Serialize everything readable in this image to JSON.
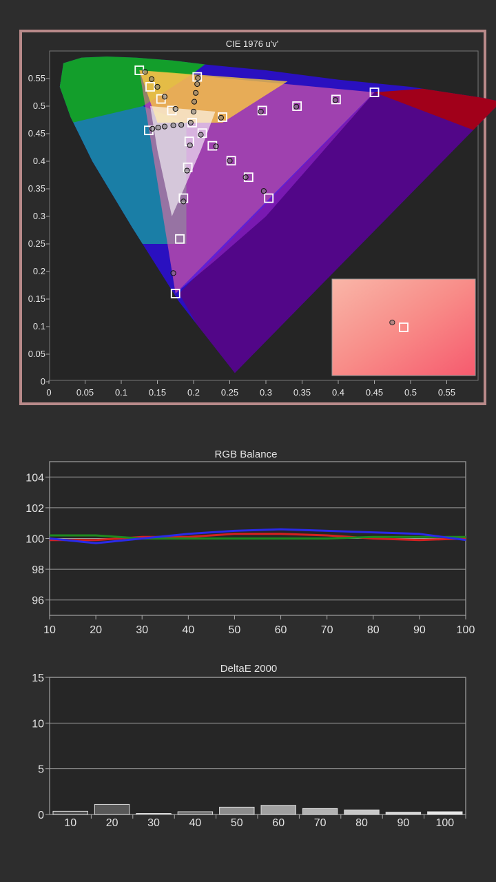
{
  "cie": {
    "chart_data": {
      "type": "scatter",
      "title": "CIE 1976 u'v'",
      "xlim": [
        0,
        0.6
      ],
      "ylim": [
        0,
        0.55
      ],
      "x_ticks": [
        "0",
        "0.05",
        "0.1",
        "0.15",
        "0.2",
        "0.25",
        "0.3",
        "0.35",
        "0.4",
        "0.45",
        "0.5",
        "0.55"
      ],
      "y_ticks": [
        "0",
        "0.05",
        "0.1",
        "0.15",
        "0.2",
        "0.25",
        "0.3",
        "0.35",
        "0.4",
        "0.45",
        "0.5",
        "0.55"
      ],
      "targets": [
        [
          0.125,
          0.565
        ],
        [
          0.14,
          0.535
        ],
        [
          0.155,
          0.513
        ],
        [
          0.17,
          0.492
        ],
        [
          0.205,
          0.553
        ],
        [
          0.198,
          0.47
        ],
        [
          0.212,
          0.451
        ],
        [
          0.138,
          0.456
        ],
        [
          0.194,
          0.436
        ],
        [
          0.192,
          0.389
        ],
        [
          0.186,
          0.333
        ],
        [
          0.181,
          0.259
        ],
        [
          0.175,
          0.16
        ],
        [
          0.24,
          0.48
        ],
        [
          0.295,
          0.492
        ],
        [
          0.343,
          0.5
        ],
        [
          0.397,
          0.512
        ],
        [
          0.45,
          0.525
        ],
        [
          0.226,
          0.428
        ],
        [
          0.252,
          0.401
        ],
        [
          0.276,
          0.371
        ],
        [
          0.304,
          0.333
        ]
      ],
      "measured": [
        [
          0.133,
          0.562
        ],
        [
          0.142,
          0.549
        ],
        [
          0.15,
          0.535
        ],
        [
          0.16,
          0.517
        ],
        [
          0.175,
          0.495
        ],
        [
          0.206,
          0.551
        ],
        [
          0.205,
          0.54
        ],
        [
          0.203,
          0.524
        ],
        [
          0.201,
          0.508
        ],
        [
          0.2,
          0.49
        ],
        [
          0.143,
          0.459
        ],
        [
          0.151,
          0.461
        ],
        [
          0.16,
          0.463
        ],
        [
          0.172,
          0.465
        ],
        [
          0.183,
          0.466
        ],
        [
          0.196,
          0.47
        ],
        [
          0.21,
          0.448
        ],
        [
          0.195,
          0.429
        ],
        [
          0.191,
          0.383
        ],
        [
          0.186,
          0.327
        ],
        [
          0.172,
          0.197
        ],
        [
          0.238,
          0.479
        ],
        [
          0.293,
          0.49
        ],
        [
          0.342,
          0.499
        ],
        [
          0.396,
          0.511
        ],
        [
          0.231,
          0.427
        ],
        [
          0.25,
          0.401
        ],
        [
          0.272,
          0.371
        ],
        [
          0.297,
          0.346
        ]
      ],
      "inset": {
        "target": [
          0.5,
          0.5
        ],
        "measured": [
          0.42,
          0.45
        ]
      },
      "grid": false
    }
  },
  "rgb": {
    "chart_data": {
      "type": "line",
      "title": "RGB Balance",
      "x": [
        10,
        20,
        30,
        40,
        50,
        60,
        70,
        80,
        90,
        100
      ],
      "ylim": [
        95,
        105
      ],
      "y_ticks": [
        96,
        98,
        100,
        102,
        104
      ],
      "x_ticks": [
        "10",
        "20",
        "30",
        "40",
        "50",
        "60",
        "70",
        "80",
        "90",
        "100"
      ],
      "series": [
        {
          "color": "#d42020",
          "values": [
            99.9,
            99.9,
            100.1,
            100.1,
            100.3,
            100.3,
            100.2,
            100.0,
            99.9,
            100.0
          ]
        },
        {
          "color": "#1e8a1e",
          "values": [
            100.2,
            100.2,
            100.0,
            100.0,
            100.0,
            100.0,
            100.0,
            100.1,
            100.1,
            100.1
          ]
        },
        {
          "color": "#2a2ae8",
          "values": [
            100.0,
            99.7,
            100.0,
            100.3,
            100.5,
            100.6,
            100.5,
            100.4,
            100.3,
            99.9
          ]
        }
      ],
      "grid": true
    }
  },
  "de": {
    "chart_data": {
      "type": "bar",
      "title": "DeltaE 2000",
      "categories": [
        "10",
        "20",
        "30",
        "40",
        "50",
        "60",
        "70",
        "80",
        "90",
        "100"
      ],
      "values": [
        0.35,
        1.1,
        0.05,
        0.3,
        0.8,
        1.0,
        0.65,
        0.5,
        0.25,
        0.3
      ],
      "ylim": [
        0,
        15
      ],
      "y_ticks": [
        0,
        5,
        10,
        15
      ],
      "bar_colors": [
        "#4a4a4a",
        "#585858",
        "#444444",
        "#6a6a6a",
        "#8c8c8c",
        "#a0a0a0",
        "#b2b2b2",
        "#c8c8c8",
        "#d8d8d8",
        "#eaeaea"
      ],
      "grid": true
    }
  }
}
